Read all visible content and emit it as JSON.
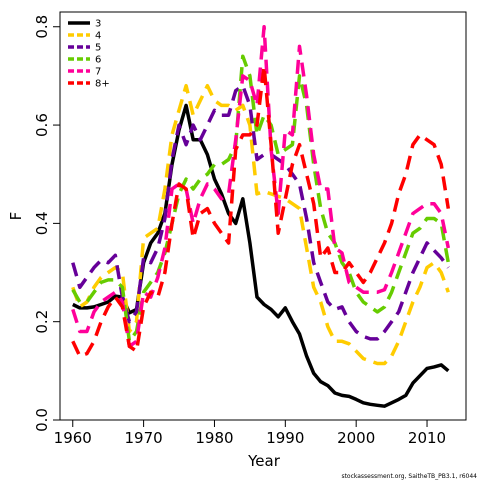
{
  "chart_data": {
    "type": "line",
    "title": "",
    "xlabel": "Year",
    "ylabel": "F",
    "xlim": [
      1958.2,
      2015.5
    ],
    "ylim": [
      0.0,
      0.83
    ],
    "xticks": [
      1960,
      1970,
      1980,
      1990,
      2000,
      2010
    ],
    "xtick_labels": [
      "1960",
      "1970",
      "1980",
      "1990",
      "2000",
      "2010"
    ],
    "yticks": [
      0.0,
      0.2,
      0.4,
      0.6,
      0.8
    ],
    "ytick_labels": [
      "0.0",
      "0.2",
      "0.4",
      "0.6",
      "0.8"
    ],
    "grid": false,
    "legend_position": "top-left",
    "source": "stockassessment.org, SaitheTB_PB3.1, r6044",
    "series": [
      {
        "name": "3",
        "color": "#000000",
        "dashed": false,
        "x": [
          1960,
          1961,
          1962,
          1963,
          1964,
          1965,
          1966,
          1967,
          1968,
          1969,
          1970,
          1971,
          1972,
          1973,
          1974,
          1975,
          1976,
          1977,
          1978,
          1979,
          1980,
          1981,
          1982,
          1983,
          1984,
          1985,
          1986,
          1987,
          1988,
          1989,
          1990,
          1991,
          1992,
          1993,
          1994,
          1995,
          1996,
          1997,
          1998,
          1999,
          2000,
          2001,
          2002,
          2003,
          2004,
          2005,
          2006,
          2007,
          2008,
          2009,
          2010,
          2011,
          2012,
          2013
        ],
        "y": [
          0.235,
          0.228,
          0.228,
          0.23,
          0.235,
          0.24,
          0.252,
          0.25,
          0.218,
          0.225,
          0.32,
          0.36,
          0.38,
          0.42,
          0.52,
          0.59,
          0.64,
          0.57,
          0.57,
          0.54,
          0.49,
          0.46,
          0.42,
          0.4,
          0.45,
          0.36,
          0.25,
          0.235,
          0.225,
          0.21,
          0.228,
          0.2,
          0.175,
          0.13,
          0.095,
          0.078,
          0.07,
          0.055,
          0.05,
          0.048,
          0.042,
          0.035,
          0.032,
          0.03,
          0.028,
          0.035,
          0.042,
          0.05,
          0.075,
          0.09,
          0.105,
          0.108,
          0.112,
          0.1
        ]
      },
      {
        "name": "4",
        "color": "#FFCC00",
        "dashed": true,
        "x": [
          1960,
          1961,
          1962,
          1963,
          1964,
          1965,
          1966,
          1967,
          1968,
          1969,
          1970,
          1971,
          1972,
          1973,
          1974,
          1975,
          1976,
          1977,
          1978,
          1979,
          1980,
          1981,
          1982,
          1983,
          1984,
          1985,
          1986,
          1987,
          1988,
          1989,
          1990,
          1991,
          1992,
          1993,
          1994,
          1995,
          1996,
          1997,
          1998,
          1999,
          2000,
          2001,
          2002,
          2003,
          2004,
          2005,
          2006,
          2007,
          2008,
          2009,
          2010,
          2011,
          2012,
          2013
        ],
        "y": [
          0.27,
          0.23,
          0.24,
          0.27,
          0.29,
          0.3,
          0.31,
          0.3,
          0.18,
          0.2,
          0.37,
          0.38,
          0.39,
          0.47,
          0.58,
          0.63,
          0.68,
          0.62,
          0.65,
          0.68,
          0.65,
          0.64,
          0.64,
          0.63,
          0.64,
          0.6,
          0.46,
          0.465,
          0.46,
          0.455,
          0.45,
          0.44,
          0.43,
          0.35,
          0.27,
          0.24,
          0.19,
          0.16,
          0.16,
          0.155,
          0.14,
          0.125,
          0.12,
          0.115,
          0.115,
          0.13,
          0.16,
          0.2,
          0.24,
          0.27,
          0.31,
          0.32,
          0.3,
          0.26
        ]
      },
      {
        "name": "5",
        "color": "#660099",
        "dashed": true,
        "x": [
          1960,
          1961,
          1962,
          1963,
          1964,
          1965,
          1966,
          1967,
          1968,
          1969,
          1970,
          1971,
          1972,
          1973,
          1974,
          1975,
          1976,
          1977,
          1978,
          1979,
          1980,
          1981,
          1982,
          1983,
          1984,
          1985,
          1986,
          1987,
          1988,
          1989,
          1990,
          1991,
          1992,
          1993,
          1994,
          1995,
          1996,
          1997,
          1998,
          1999,
          2000,
          2001,
          2002,
          2003,
          2004,
          2005,
          2006,
          2007,
          2008,
          2009,
          2010,
          2011,
          2012,
          2013
        ],
        "y": [
          0.32,
          0.27,
          0.29,
          0.31,
          0.325,
          0.32,
          0.335,
          0.25,
          0.2,
          0.22,
          0.33,
          0.32,
          0.35,
          0.41,
          0.53,
          0.6,
          0.56,
          0.6,
          0.57,
          0.6,
          0.63,
          0.62,
          0.62,
          0.67,
          0.68,
          0.64,
          0.53,
          0.54,
          0.54,
          0.53,
          0.52,
          0.5,
          0.48,
          0.41,
          0.32,
          0.28,
          0.24,
          0.225,
          0.23,
          0.2,
          0.18,
          0.17,
          0.165,
          0.165,
          0.18,
          0.2,
          0.22,
          0.26,
          0.3,
          0.33,
          0.36,
          0.345,
          0.33,
          0.31
        ]
      },
      {
        "name": "6",
        "color": "#66CC00",
        "dashed": true,
        "x": [
          1960,
          1961,
          1962,
          1963,
          1964,
          1965,
          1966,
          1967,
          1968,
          1969,
          1970,
          1971,
          1972,
          1973,
          1974,
          1975,
          1976,
          1977,
          1978,
          1979,
          1980,
          1981,
          1982,
          1983,
          1984,
          1985,
          1986,
          1987,
          1988,
          1989,
          1990,
          1991,
          1992,
          1993,
          1994,
          1995,
          1996,
          1997,
          1998,
          1999,
          2000,
          2001,
          2002,
          2003,
          2004,
          2005,
          2006,
          2007,
          2008,
          2009,
          2010,
          2011,
          2012,
          2013
        ],
        "y": [
          0.265,
          0.24,
          0.24,
          0.26,
          0.28,
          0.285,
          0.285,
          0.27,
          0.16,
          0.18,
          0.26,
          0.28,
          0.3,
          0.34,
          0.4,
          0.46,
          0.49,
          0.47,
          0.49,
          0.5,
          0.52,
          0.52,
          0.53,
          0.56,
          0.74,
          0.7,
          0.58,
          0.62,
          0.6,
          0.54,
          0.55,
          0.56,
          0.7,
          0.64,
          0.52,
          0.43,
          0.38,
          0.36,
          0.32,
          0.3,
          0.26,
          0.24,
          0.23,
          0.22,
          0.23,
          0.26,
          0.3,
          0.34,
          0.38,
          0.39,
          0.41,
          0.41,
          0.4,
          0.32
        ]
      },
      {
        "name": "7",
        "color": "#FF0099",
        "dashed": true,
        "x": [
          1960,
          1961,
          1962,
          1963,
          1964,
          1965,
          1966,
          1967,
          1968,
          1969,
          1970,
          1971,
          1972,
          1973,
          1974,
          1975,
          1976,
          1977,
          1978,
          1979,
          1980,
          1981,
          1982,
          1983,
          1984,
          1985,
          1986,
          1987,
          1988,
          1989,
          1990,
          1991,
          1992,
          1993,
          1994,
          1995,
          1996,
          1997,
          1998,
          1999,
          2000,
          2001,
          2002,
          2003,
          2004,
          2005,
          2006,
          2007,
          2008,
          2009,
          2010,
          2011,
          2012,
          2013
        ],
        "y": [
          0.225,
          0.18,
          0.18,
          0.22,
          0.24,
          0.25,
          0.26,
          0.24,
          0.15,
          0.16,
          0.26,
          0.25,
          0.29,
          0.35,
          0.47,
          0.48,
          0.47,
          0.4,
          0.45,
          0.48,
          0.47,
          0.45,
          0.46,
          0.57,
          0.7,
          0.69,
          0.64,
          0.8,
          0.55,
          0.42,
          0.59,
          0.58,
          0.76,
          0.66,
          0.54,
          0.47,
          0.47,
          0.35,
          0.34,
          0.28,
          0.27,
          0.26,
          0.26,
          0.26,
          0.265,
          0.3,
          0.34,
          0.38,
          0.42,
          0.43,
          0.44,
          0.44,
          0.42,
          0.35
        ]
      },
      {
        "name": "8+",
        "color": "#FF0000",
        "dashed": true,
        "x": [
          1960,
          1961,
          1962,
          1963,
          1964,
          1965,
          1966,
          1967,
          1968,
          1969,
          1970,
          1971,
          1972,
          1973,
          1974,
          1975,
          1976,
          1977,
          1978,
          1979,
          1980,
          1981,
          1982,
          1983,
          1984,
          1985,
          1986,
          1987,
          1988,
          1989,
          1990,
          1991,
          1992,
          1993,
          1994,
          1995,
          1996,
          1997,
          1998,
          1999,
          2000,
          2001,
          2002,
          2003,
          2004,
          2005,
          2006,
          2007,
          2008,
          2009,
          2010,
          2011,
          2012,
          2013
        ],
        "y": [
          0.16,
          0.13,
          0.135,
          0.16,
          0.2,
          0.23,
          0.25,
          0.23,
          0.15,
          0.14,
          0.23,
          0.26,
          0.25,
          0.3,
          0.4,
          0.48,
          0.47,
          0.37,
          0.42,
          0.43,
          0.4,
          0.38,
          0.36,
          0.55,
          0.58,
          0.58,
          0.6,
          0.72,
          0.56,
          0.38,
          0.45,
          0.52,
          0.56,
          0.5,
          0.44,
          0.33,
          0.35,
          0.3,
          0.3,
          0.32,
          0.3,
          0.28,
          0.3,
          0.33,
          0.36,
          0.4,
          0.46,
          0.5,
          0.56,
          0.58,
          0.57,
          0.56,
          0.52,
          0.43
        ]
      }
    ]
  }
}
